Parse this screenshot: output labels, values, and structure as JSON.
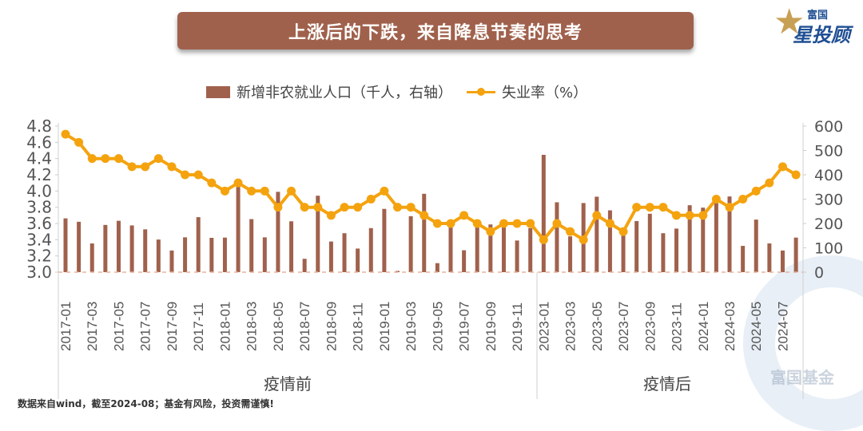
{
  "header": {
    "title": "上涨后的下跌，来自降息节奏的思考",
    "logo_small": "富国",
    "logo_big": "星投顾"
  },
  "legend": {
    "bar_label": "新增非农就业人口（千人，右轴）",
    "line_label": "失业率（%）"
  },
  "regions": {
    "before": "疫情前",
    "after": "疫情后"
  },
  "footnote": "数据来自wind，截至2024-08；基金有风险，投资需谨慎!",
  "watermark": "富国基金",
  "colors": {
    "bar": "#a0614c",
    "line": "#f4a30f",
    "banner": "#a0614c",
    "axis_text": "#555555"
  },
  "chart_data": {
    "type": "bar+line",
    "title": "上涨后的下跌，来自降息节奏的思考",
    "categories": [
      "2017-01",
      "2017-02",
      "2017-03",
      "2017-04",
      "2017-05",
      "2017-06",
      "2017-07",
      "2017-08",
      "2017-09",
      "2017-10",
      "2017-11",
      "2017-12",
      "2018-01",
      "2018-02",
      "2018-03",
      "2018-04",
      "2018-05",
      "2018-06",
      "2018-07",
      "2018-08",
      "2018-09",
      "2018-10",
      "2018-11",
      "2018-12",
      "2019-01",
      "2019-02",
      "2019-03",
      "2019-04",
      "2019-05",
      "2019-06",
      "2019-07",
      "2019-08",
      "2019-09",
      "2019-10",
      "2019-11",
      "2019-12",
      "2023-01",
      "2023-02",
      "2023-03",
      "2023-04",
      "2023-05",
      "2023-06",
      "2023-07",
      "2023-08",
      "2023-09",
      "2023-10",
      "2023-11",
      "2023-12",
      "2024-01",
      "2024-02",
      "2024-03",
      "2024-04",
      "2024-05",
      "2024-06",
      "2024-07",
      "2024-08"
    ],
    "tick_labels": [
      "2017-01",
      "2017-03",
      "2017-05",
      "2017-07",
      "2017-09",
      "2017-11",
      "2018-01",
      "2018-03",
      "2018-05",
      "2018-07",
      "2018-09",
      "2018-11",
      "2019-01",
      "2019-03",
      "2019-05",
      "2019-07",
      "2019-09",
      "2019-11",
      "2023-01",
      "2023-03",
      "2023-05",
      "2023-07",
      "2023-09",
      "2023-11",
      "2024-01",
      "2024-03",
      "2024-05",
      "2024-07"
    ],
    "series": [
      {
        "name": "新增非农就业人口（千人，右轴）",
        "type": "bar",
        "axis": "right",
        "values": [
          221,
          207,
          118,
          194,
          211,
          192,
          176,
          134,
          89,
          143,
          226,
          141,
          142,
          380,
          218,
          143,
          330,
          209,
          55,
          314,
          126,
          160,
          97,
          181,
          260,
          5,
          230,
          322,
          37,
          185,
          90,
          213,
          196,
          186,
          130,
          181,
          482,
          287,
          147,
          284,
          310,
          254,
          165,
          210,
          240,
          160,
          179,
          275,
          265,
          290,
          311,
          108,
          216,
          118,
          89,
          142
        ]
      },
      {
        "name": "失业率（%）",
        "type": "line",
        "axis": "left",
        "values": [
          4.7,
          4.6,
          4.4,
          4.4,
          4.4,
          4.3,
          4.3,
          4.4,
          4.3,
          4.2,
          4.2,
          4.1,
          4.0,
          4.1,
          4.0,
          4.0,
          3.8,
          4.0,
          3.8,
          3.8,
          3.7,
          3.8,
          3.8,
          3.9,
          4.0,
          3.8,
          3.8,
          3.7,
          3.6,
          3.6,
          3.7,
          3.6,
          3.5,
          3.6,
          3.6,
          3.6,
          3.4,
          3.6,
          3.5,
          3.4,
          3.7,
          3.6,
          3.5,
          3.8,
          3.8,
          3.8,
          3.7,
          3.7,
          3.7,
          3.9,
          3.8,
          3.9,
          4.0,
          4.1,
          4.3,
          4.2
        ]
      }
    ],
    "y_left": {
      "min": 3.0,
      "max": 4.8,
      "step": 0.2,
      "ticks": [
        "3.0",
        "3.2",
        "3.4",
        "3.6",
        "3.8",
        "4.0",
        "4.2",
        "4.4",
        "4.6",
        "4.8"
      ]
    },
    "y_right": {
      "min": 0,
      "max": 600,
      "step": 100,
      "ticks": [
        "0",
        "100",
        "200",
        "300",
        "400",
        "500",
        "600"
      ]
    },
    "xlabel": "",
    "ylabel_left": "",
    "ylabel_right": "",
    "group_labels": [
      "疫情前",
      "疫情后"
    ],
    "grid": false,
    "legend_position": "top"
  }
}
